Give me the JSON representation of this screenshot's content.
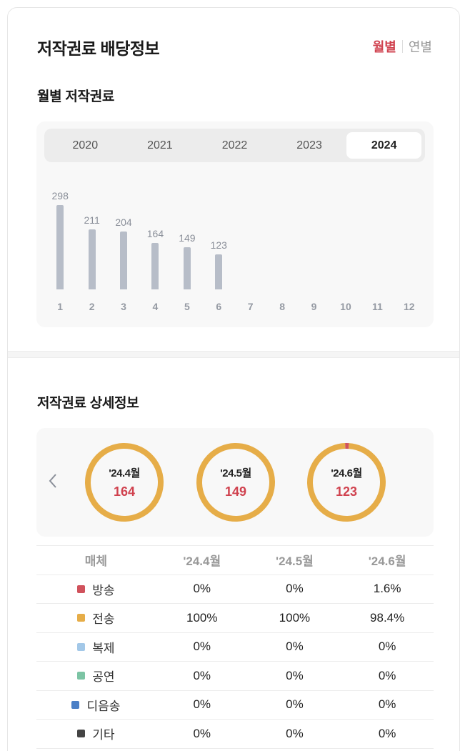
{
  "header": {
    "title": "저작권료 배당정보",
    "toggle": {
      "monthly": "월별",
      "yearly": "연별",
      "active": "monthly"
    }
  },
  "monthly_section": {
    "title": "월별 저작권료",
    "years": [
      "2020",
      "2021",
      "2022",
      "2023",
      "2024"
    ],
    "selected_year": "2024",
    "bar_color": "#b7bdc8"
  },
  "chart_data": {
    "type": "bar",
    "title": "월별 저작권료 (2024)",
    "categories": [
      "1",
      "2",
      "3",
      "4",
      "5",
      "6",
      "7",
      "8",
      "9",
      "10",
      "11",
      "12"
    ],
    "values": [
      298,
      211,
      204,
      164,
      149,
      123,
      null,
      null,
      null,
      null,
      null,
      null
    ],
    "xlabel": "",
    "ylabel": "",
    "ylim": [
      0,
      298
    ],
    "grid": false,
    "legend": "none"
  },
  "detail_section": {
    "title": "저작권료 상세정보",
    "prev_icon": "chevron-left-icon",
    "donuts": [
      {
        "label": "'24.4월",
        "value": "164",
        "segments": [
          {
            "media": "전송",
            "pct": 100,
            "color": "#e6ad48"
          }
        ]
      },
      {
        "label": "'24.5월",
        "value": "149",
        "segments": [
          {
            "media": "전송",
            "pct": 100,
            "color": "#e6ad48"
          }
        ]
      },
      {
        "label": "'24.6월",
        "value": "123",
        "segments": [
          {
            "media": "방송",
            "pct": 1.6,
            "color": "#d0525c"
          },
          {
            "media": "전송",
            "pct": 98.4,
            "color": "#e6ad48"
          }
        ]
      }
    ],
    "table": {
      "headers": [
        "매체",
        "'24.4월",
        "'24.5월",
        "'24.6월"
      ],
      "rows": [
        {
          "media": "방송",
          "color": "#d0525c",
          "values": [
            "0%",
            "0%",
            "1.6%"
          ]
        },
        {
          "media": "전송",
          "color": "#e6ad48",
          "values": [
            "100%",
            "100%",
            "98.4%"
          ]
        },
        {
          "media": "복제",
          "color": "#a3c8e8",
          "values": [
            "0%",
            "0%",
            "0%"
          ]
        },
        {
          "media": "공연",
          "color": "#7cc4a4",
          "values": [
            "0%",
            "0%",
            "0%"
          ]
        },
        {
          "media": "디음송",
          "color": "#4a7fc6",
          "values": [
            "0%",
            "0%",
            "0%"
          ]
        },
        {
          "media": "기타",
          "color": "#444444",
          "values": [
            "0%",
            "0%",
            "0%"
          ]
        }
      ]
    }
  },
  "colors": {
    "accent": "#d0424f",
    "donut_primary": "#e6ad48"
  }
}
